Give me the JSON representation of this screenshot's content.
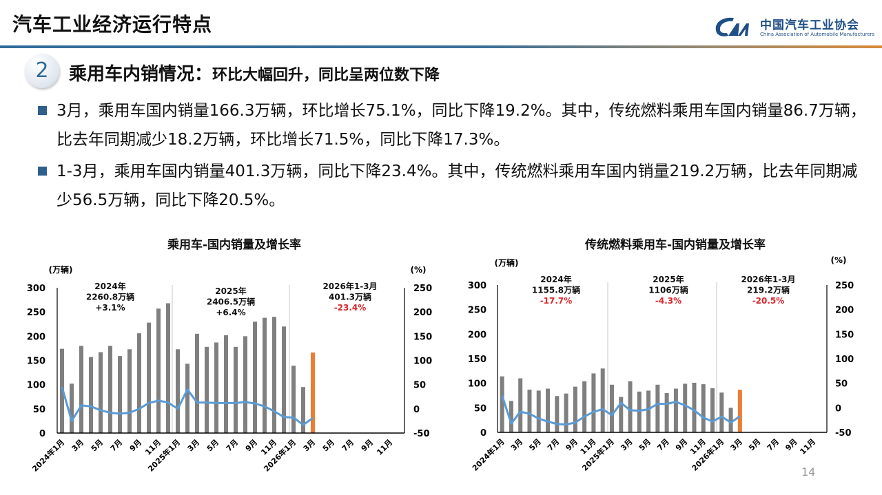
{
  "header": {
    "title": "汽车工业经济运行特点",
    "logo": {
      "cn": "中国汽车工业协会",
      "en": "China Association of Automobile Manufacturers",
      "mark": "CAAM"
    }
  },
  "section": {
    "number": "2",
    "title": "乘用车内销情况：",
    "subtitle": "环比大幅回升，同比呈两位数下降"
  },
  "bullets": [
    "3月，乘用车国内销量166.3万辆，环比增长75.1%，同比下降19.2%。其中，传统燃料乘用车国内销量86.7万辆，比去年同期减少18.2万辆，环比增长71.5%，同比下降17.3%。",
    "1-3月，乘用车国内销量401.3万辆，同比下降23.4%。其中，传统燃料乘用车国内销量219.2万辆，比去年同期减少56.5万辆，同比下降20.5%。"
  ],
  "page_number": "14",
  "colors": {
    "bar": "#7f7f7f",
    "bar_highlight": "#ed7d31",
    "line": "#5b9bd5",
    "negative": "#d9262c",
    "accent": "#2f6b9a"
  },
  "chart_data": [
    {
      "type": "bar+line",
      "title": "乘用车-国内销量及增长率",
      "ylabel": "(万辆)",
      "y2label": "(%)",
      "ylim": [
        0,
        300
      ],
      "yticks": [
        "0",
        "50",
        "100",
        "150",
        "200",
        "250",
        "300"
      ],
      "y2lim": [
        -50,
        250
      ],
      "y2ticks": [
        "-50",
        "0",
        "50",
        "100",
        "150",
        "200",
        "250"
      ],
      "xticks": [
        "2024年1月",
        "3月",
        "5月",
        "7月",
        "9月",
        "11月",
        "2025年1月",
        "3月",
        "5月",
        "7月",
        "9月",
        "11月",
        "2026年1月",
        "3月",
        "5月",
        "7月",
        "9月",
        "11月"
      ],
      "months_on_axis": 36,
      "bars": [
        174,
        102,
        180,
        157,
        167,
        180,
        159,
        173,
        206,
        228,
        257,
        268,
        173,
        143,
        205,
        178,
        187,
        202,
        178,
        200,
        230,
        238,
        240,
        220,
        139,
        95,
        166.3
      ],
      "highlight_index": 26,
      "line": [
        45,
        -25,
        7,
        5,
        -3,
        -8,
        -10,
        -8,
        0,
        12,
        17,
        13,
        0,
        40,
        13,
        13,
        12,
        12,
        12,
        14,
        11,
        5,
        -5,
        -17,
        -18,
        -33,
        -19.2
      ],
      "annotations": [
        {
          "lines": [
            "2024年",
            "2260.8万辆",
            "+3.1%"
          ],
          "negative": false
        },
        {
          "lines": [
            "2025年",
            "2406.5万辆",
            "+6.4%"
          ],
          "negative": false
        },
        {
          "lines": [
            "2026年1-3月",
            "401.3万辆",
            "-23.4%"
          ],
          "negative": true
        }
      ]
    },
    {
      "type": "bar+line",
      "title": "传统燃料乘用车-国内销量及增长率",
      "ylabel": "(万辆)",
      "y2label": "(%)",
      "ylim": [
        0,
        300
      ],
      "yticks": [
        "0",
        "50",
        "100",
        "150",
        "200",
        "250",
        "300"
      ],
      "y2lim": [
        -50,
        250
      ],
      "y2ticks": [
        "-50",
        "0",
        "50",
        "100",
        "150",
        "200",
        "250"
      ],
      "xticks": [
        "2024年1月",
        "3月",
        "5月",
        "7月",
        "9月",
        "11月",
        "2025年1月",
        "3月",
        "5月",
        "7月",
        "9月",
        "11月",
        "2026年1月",
        "3月",
        "5月",
        "7月",
        "9月",
        "11月"
      ],
      "months_on_axis": 36,
      "bars": [
        114,
        64,
        110,
        87,
        85,
        89,
        74,
        79,
        93,
        104,
        120,
        130,
        97,
        72,
        104,
        83,
        85,
        97,
        80,
        89,
        99,
        101,
        98,
        90,
        81,
        50,
        86.7
      ],
      "highlight_index": 26,
      "line": [
        25,
        -32,
        -8,
        -12,
        -22,
        -28,
        -33,
        -34,
        -30,
        -18,
        -8,
        -3,
        -15,
        10,
        -5,
        -6,
        -3,
        8,
        8,
        12,
        5,
        -5,
        -20,
        -28,
        -18,
        -30,
        -17.3
      ],
      "annotations": [
        {
          "lines": [
            "2024年",
            "1155.8万辆",
            "-17.7%"
          ],
          "negative": true
        },
        {
          "lines": [
            "2025年",
            "1106万辆",
            "-4.3%"
          ],
          "negative": true
        },
        {
          "lines": [
            "2026年1-3月",
            "219.2万辆",
            "-20.5%"
          ],
          "negative": true
        }
      ]
    }
  ]
}
